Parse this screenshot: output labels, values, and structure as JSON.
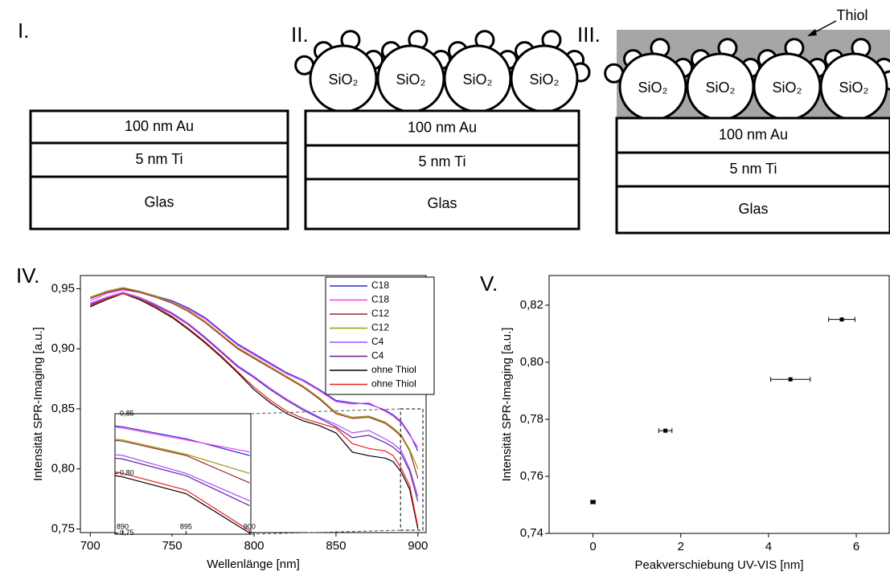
{
  "panels": [
    {
      "label": "I.",
      "layers": [
        "100 nm Au",
        "5 nm Ti",
        "Glas"
      ]
    },
    {
      "label": "II.",
      "particles": [
        "SiO₂",
        "SiO₂",
        "SiO₂",
        "SiO₂"
      ],
      "layers": [
        "100 nm Au",
        "5 nm Ti",
        "Glas"
      ]
    },
    {
      "label": "III.",
      "coating": "Thiol",
      "particles": [
        "SiO₂",
        "SiO₂",
        "SiO₂",
        "SiO₂"
      ],
      "layers": [
        "100 nm Au",
        "5 nm Ti",
        "Glas"
      ]
    }
  ],
  "chart_data": [
    {
      "type": "line",
      "label": "IV.",
      "xlabel": "Wellenlänge [nm]",
      "ylabel": "Intensität SPR-Imaging [a.u.]",
      "x": [
        700,
        710,
        720,
        730,
        740,
        750,
        760,
        770,
        780,
        790,
        800,
        810,
        820,
        830,
        840,
        850,
        860,
        870,
        880,
        885,
        890,
        895,
        900
      ],
      "xlim": [
        694,
        905
      ],
      "ylim": [
        0.747,
        0.961
      ],
      "xticks": [
        700,
        750,
        800,
        850,
        900
      ],
      "yticks": [
        {
          "value": 0.75,
          "label": "0,75"
        },
        {
          "value": 0.8,
          "label": "0,80"
        },
        {
          "value": 0.85,
          "label": "0,85"
        },
        {
          "value": 0.9,
          "label": "0,90"
        },
        {
          "value": 0.95,
          "label": "0,95"
        }
      ],
      "series": [
        {
          "name": "C18",
          "color": "#2b2bd0",
          "values": [
            0.942,
            0.947,
            0.95,
            0.948,
            0.944,
            0.94,
            0.934,
            0.926,
            0.915,
            0.904,
            0.896,
            0.888,
            0.88,
            0.874,
            0.866,
            0.857,
            0.855,
            0.854,
            0.849,
            0.845,
            0.839,
            0.829,
            0.815
          ]
        },
        {
          "name": "C18",
          "color": "#f040f0",
          "values": [
            0.94,
            0.946,
            0.949,
            0.947,
            0.943,
            0.939,
            0.933,
            0.925,
            0.914,
            0.903,
            0.895,
            0.887,
            0.879,
            0.873,
            0.865,
            0.856,
            0.854,
            0.855,
            0.848,
            0.844,
            0.838,
            0.828,
            0.818
          ]
        },
        {
          "name": "C12",
          "color": "#9a2a2a",
          "values": [
            0.942,
            0.947,
            0.95,
            0.947,
            0.943,
            0.938,
            0.931,
            0.922,
            0.911,
            0.9,
            0.892,
            0.884,
            0.876,
            0.868,
            0.858,
            0.846,
            0.842,
            0.843,
            0.838,
            0.833,
            0.827,
            0.815,
            0.792
          ]
        },
        {
          "name": "C12",
          "color": "#9a9a10",
          "values": [
            0.943,
            0.948,
            0.951,
            0.948,
            0.944,
            0.939,
            0.932,
            0.923,
            0.912,
            0.901,
            0.893,
            0.885,
            0.877,
            0.869,
            0.859,
            0.847,
            0.843,
            0.844,
            0.839,
            0.834,
            0.828,
            0.816,
            0.8
          ]
        },
        {
          "name": "C4",
          "color": "#a050ff",
          "values": [
            0.938,
            0.943,
            0.947,
            0.943,
            0.937,
            0.93,
            0.921,
            0.91,
            0.898,
            0.886,
            0.877,
            0.867,
            0.858,
            0.85,
            0.843,
            0.837,
            0.83,
            0.832,
            0.825,
            0.821,
            0.815,
            0.8,
            0.777
          ]
        },
        {
          "name": "C4",
          "color": "#6a1f9a",
          "values": [
            0.937,
            0.942,
            0.946,
            0.942,
            0.936,
            0.929,
            0.92,
            0.909,
            0.897,
            0.885,
            0.876,
            0.866,
            0.857,
            0.849,
            0.842,
            0.835,
            0.826,
            0.828,
            0.822,
            0.818,
            0.812,
            0.798,
            0.773
          ]
        },
        {
          "name": "ohne Thiol",
          "color": "#000000",
          "values": [
            0.935,
            0.941,
            0.946,
            0.941,
            0.934,
            0.926,
            0.916,
            0.905,
            0.893,
            0.88,
            0.866,
            0.855,
            0.846,
            0.84,
            0.836,
            0.83,
            0.814,
            0.811,
            0.809,
            0.806,
            0.797,
            0.783,
            0.75
          ]
        },
        {
          "name": "ohne Thiol",
          "color": "#ee1c1c",
          "values": [
            0.936,
            0.942,
            0.946,
            0.942,
            0.935,
            0.927,
            0.917,
            0.906,
            0.894,
            0.881,
            0.868,
            0.857,
            0.848,
            0.842,
            0.838,
            0.834,
            0.821,
            0.817,
            0.815,
            0.811,
            0.8,
            0.786,
            0.752
          ]
        }
      ],
      "inset": {
        "xlim": [
          889.4,
          900.1
        ],
        "ylim": [
          0.749,
          0.85
        ],
        "xticks": [
          890,
          895,
          900
        ],
        "yticks": [
          {
            "value": 0.75,
            "label": "0,75"
          },
          {
            "value": 0.8,
            "label": "0,80"
          },
          {
            "value": 0.85,
            "label": "0,85"
          }
        ]
      }
    },
    {
      "type": "scatter",
      "label": "V.",
      "xlabel": "Peakverschiebung UV-VIS [nm]",
      "ylabel": "Intensität SPR-Imaging [a.u.]",
      "x": [
        0,
        1.65,
        4.5,
        5.67
      ],
      "values": [
        0.751,
        0.776,
        0.794,
        0.815
      ],
      "xerr": [
        0.05,
        0.15,
        0.45,
        0.3
      ],
      "yerr": [
        0.0003,
        0.0005,
        0.0007,
        0.0005
      ],
      "color": "#000000",
      "xlim": [
        -1,
        6.75
      ],
      "ylim": [
        0.74,
        0.8304
      ],
      "xticks": [
        0,
        2,
        4,
        6
      ],
      "yticks": [
        {
          "value": 0.74,
          "label": "0,74"
        },
        {
          "value": 0.76,
          "label": "0,76"
        },
        {
          "value": 0.78,
          "label": "0,78"
        },
        {
          "value": 0.8,
          "label": "0,80"
        },
        {
          "value": 0.82,
          "label": "0,82"
        }
      ]
    }
  ]
}
